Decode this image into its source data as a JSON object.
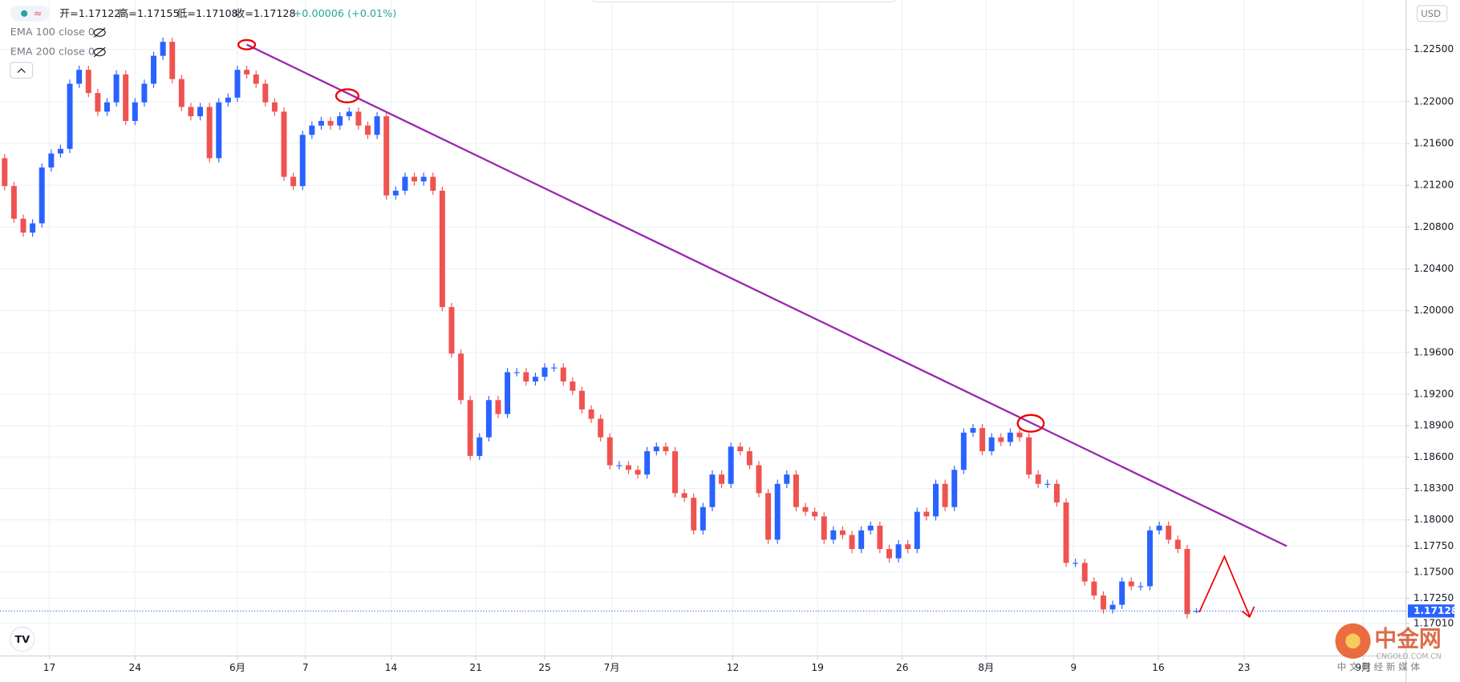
{
  "chart_data": {
    "type": "candlestick",
    "ohlc_text": [
      "开=1.17122",
      "高=1.17155",
      "低=1.17108",
      "收=1.17128",
      "+0.00006 (+0.01%)"
    ],
    "indicators": [
      "EMA 100 close 0",
      "EMA 200 close 0"
    ],
    "currency": "USD",
    "watermark": [
      "中金网",
      "CNGOLD.COM.CN",
      "中 文 财 经 新 媒 体"
    ],
    "up_color": "#2962ff",
    "down_color": "#ef5350",
    "grid": true,
    "xlim": [
      -0.5,
      150.5
    ],
    "ylim": [
      1.16698,
      1.22972
    ],
    "xticks": [
      {
        "value": 4.8,
        "label": "17"
      },
      {
        "value": 14,
        "label": "24"
      },
      {
        "value": 25,
        "label": "6月"
      },
      {
        "value": 32.3,
        "label": "7"
      },
      {
        "value": 41.5,
        "label": "14"
      },
      {
        "value": 50.6,
        "label": "21"
      },
      {
        "value": 58,
        "label": "25"
      },
      {
        "value": 65.2,
        "label": "7月"
      },
      {
        "value": 78.2,
        "label": "12"
      },
      {
        "value": 87.3,
        "label": "19"
      },
      {
        "value": 96.4,
        "label": "26"
      },
      {
        "value": 105.4,
        "label": "8月"
      },
      {
        "value": 114.8,
        "label": "9"
      },
      {
        "value": 123.9,
        "label": "16"
      },
      {
        "value": 133.1,
        "label": "23"
      },
      {
        "value": 145.9,
        "label": "9月"
      }
    ],
    "yticks": [
      {
        "value": 1.225,
        "label": "1.22500"
      },
      {
        "value": 1.22,
        "label": "1.22000"
      },
      {
        "value": 1.216,
        "label": "1.21600"
      },
      {
        "value": 1.212,
        "label": "1.21200"
      },
      {
        "value": 1.208,
        "label": "1.20800"
      },
      {
        "value": 1.204,
        "label": "1.20400"
      },
      {
        "value": 1.2,
        "label": "1.20000"
      },
      {
        "value": 1.196,
        "label": "1.19600"
      },
      {
        "value": 1.192,
        "label": "1.19200"
      },
      {
        "value": 1.189,
        "label": "1.18900"
      },
      {
        "value": 1.186,
        "label": "1.18600"
      },
      {
        "value": 1.183,
        "label": "1.18300"
      },
      {
        "value": 1.18,
        "label": "1.18000"
      },
      {
        "value": 1.1775,
        "label": "1.17750"
      },
      {
        "value": 1.175,
        "label": "1.17500"
      },
      {
        "value": 1.1725,
        "label": "1.17250"
      },
      {
        "value": 1.1701,
        "label": "1.17010"
      }
    ],
    "last_price": {
      "value": 1.17128,
      "label": "1.17128"
    },
    "x": [
      0,
      1,
      2,
      3,
      4,
      5,
      6,
      7,
      8,
      9,
      10,
      11,
      12,
      13,
      14,
      15,
      16,
      17,
      18,
      19,
      20,
      21,
      22,
      23,
      24,
      25,
      26,
      27,
      28,
      29,
      30,
      31,
      32,
      33,
      34,
      35,
      36,
      37,
      38,
      39,
      40,
      41,
      42,
      43,
      44,
      45,
      46,
      47,
      48,
      49,
      50,
      51,
      52,
      53,
      54,
      55,
      56,
      57,
      58,
      59,
      60,
      61,
      62,
      63,
      64,
      65,
      66,
      67,
      68,
      69,
      70,
      71,
      72,
      73,
      74,
      75,
      76,
      77,
      78,
      79,
      80,
      81,
      82,
      83,
      84,
      85,
      86,
      87,
      88,
      89,
      90,
      91,
      92,
      93,
      94,
      95,
      96,
      97,
      98,
      99,
      100,
      101,
      102,
      103,
      104,
      105,
      106,
      107,
      108,
      109,
      110,
      111,
      112,
      113,
      114,
      115,
      116,
      117,
      118,
      119,
      120,
      121,
      122,
      123,
      124,
      125,
      126,
      127,
      128
    ],
    "open": [
      1.21459,
      1.21192,
      1.2088,
      1.20747,
      1.20836,
      1.2137,
      1.21504,
      1.21548,
      1.22171,
      1.22304,
      1.22082,
      1.21904,
      1.21993,
      1.2226,
      1.21815,
      1.21993,
      1.22171,
      1.22438,
      1.22572,
      1.22216,
      1.21949,
      1.2186,
      1.21949,
      1.21459,
      1.21993,
      1.22038,
      1.22304,
      1.2226,
      1.22171,
      1.21993,
      1.21904,
      1.21281,
      1.21192,
      1.21682,
      1.21771,
      1.21815,
      1.21771,
      1.2186,
      1.21904,
      1.21771,
      1.21682,
      1.2186,
      1.21103,
      1.21148,
      1.21281,
      1.21237,
      1.21281,
      1.21148,
      1.20035,
      1.1959,
      1.19145,
      1.18611,
      1.18789,
      1.19145,
      1.19012,
      1.19412,
      1.19412,
      1.19323,
      1.19368,
      1.19457,
      1.19457,
      1.19323,
      1.19234,
      1.19056,
      1.18967,
      1.18789,
      1.18522,
      1.18522,
      1.18478,
      1.18433,
      1.18656,
      1.187,
      1.18656,
      1.18255,
      1.18211,
      1.17899,
      1.18122,
      1.18433,
      1.18344,
      1.187,
      1.18656,
      1.18522,
      1.18255,
      1.1781,
      1.18344,
      1.18433,
      1.18122,
      1.18077,
      1.18033,
      1.1781,
      1.17899,
      1.17855,
      1.17721,
      1.17899,
      1.17944,
      1.17721,
      1.17632,
      1.17766,
      1.17721,
      1.18077,
      1.18033,
      1.18344,
      1.18122,
      1.18478,
      1.18834,
      1.18878,
      1.18656,
      1.18789,
      1.18745,
      1.18834,
      1.18789,
      1.18433,
      1.18344,
      1.18344,
      1.18166,
      1.17588,
      1.17588,
      1.1741,
      1.17276,
      1.17143,
      1.17187,
      1.1741,
      1.17365,
      1.17365,
      1.17899,
      1.17944,
      1.1781,
      1.17721,
      1.17122
    ],
    "high": [
      1.21499,
      1.21232,
      1.2092,
      1.20876,
      1.2141,
      1.21544,
      1.21588,
      1.22211,
      1.22344,
      1.22344,
      1.22122,
      1.22033,
      1.223,
      1.223,
      1.22033,
      1.22211,
      1.22478,
      1.22612,
      1.22612,
      1.22256,
      1.21989,
      1.21989,
      1.21989,
      1.22033,
      1.22078,
      1.22344,
      1.22344,
      1.223,
      1.22211,
      1.22033,
      1.21944,
      1.21321,
      1.21722,
      1.21811,
      1.21855,
      1.21855,
      1.219,
      1.21944,
      1.21944,
      1.21811,
      1.219,
      1.219,
      1.21188,
      1.21321,
      1.21321,
      1.21321,
      1.21321,
      1.21188,
      1.20075,
      1.1963,
      1.19185,
      1.18829,
      1.19185,
      1.19185,
      1.19452,
      1.19452,
      1.19452,
      1.19408,
      1.19497,
      1.19497,
      1.19497,
      1.19363,
      1.19274,
      1.19096,
      1.19007,
      1.18829,
      1.18562,
      1.18562,
      1.18518,
      1.18696,
      1.1874,
      1.1874,
      1.18696,
      1.18295,
      1.18251,
      1.18162,
      1.18473,
      1.18473,
      1.1874,
      1.1874,
      1.18696,
      1.18562,
      1.18295,
      1.18384,
      1.18473,
      1.18473,
      1.18162,
      1.18117,
      1.18073,
      1.17939,
      1.17939,
      1.17895,
      1.17939,
      1.17984,
      1.17984,
      1.17761,
      1.17806,
      1.17806,
      1.18117,
      1.18117,
      1.18384,
      1.18384,
      1.18518,
      1.18874,
      1.18918,
      1.18918,
      1.18829,
      1.18829,
      1.18874,
      1.18874,
      1.18829,
      1.18473,
      1.18384,
      1.18384,
      1.18206,
      1.17628,
      1.17628,
      1.1745,
      1.17316,
      1.17227,
      1.1745,
      1.1745,
      1.17405,
      1.17939,
      1.17984,
      1.17984,
      1.1785,
      1.17761,
      1.17155
    ],
    "low": [
      1.21152,
      1.2084,
      1.20707,
      1.20707,
      1.20796,
      1.2133,
      1.21464,
      1.21508,
      1.22131,
      1.22042,
      1.21864,
      1.21864,
      1.21953,
      1.21775,
      1.21775,
      1.21953,
      1.22131,
      1.22398,
      1.22176,
      1.21909,
      1.2182,
      1.2182,
      1.21419,
      1.21419,
      1.21953,
      1.21998,
      1.2222,
      1.22131,
      1.21953,
      1.21864,
      1.21241,
      1.21152,
      1.21152,
      1.21642,
      1.21731,
      1.21731,
      1.21731,
      1.2182,
      1.21731,
      1.21642,
      1.21642,
      1.21063,
      1.21063,
      1.21108,
      1.21197,
      1.21197,
      1.21108,
      1.19995,
      1.1955,
      1.19105,
      1.18571,
      1.18571,
      1.18749,
      1.18972,
      1.18972,
      1.19372,
      1.19283,
      1.19283,
      1.19328,
      1.19417,
      1.19283,
      1.19194,
      1.19016,
      1.18927,
      1.18749,
      1.18482,
      1.18482,
      1.18438,
      1.18393,
      1.18393,
      1.18616,
      1.18616,
      1.18215,
      1.18171,
      1.17859,
      1.17859,
      1.18082,
      1.18304,
      1.18304,
      1.18616,
      1.18482,
      1.18215,
      1.1777,
      1.1777,
      1.18304,
      1.18082,
      1.18037,
      1.17993,
      1.1777,
      1.1777,
      1.17815,
      1.17681,
      1.17681,
      1.17859,
      1.17681,
      1.17592,
      1.17592,
      1.17681,
      1.17681,
      1.17993,
      1.17993,
      1.18082,
      1.18082,
      1.18438,
      1.18794,
      1.18616,
      1.18616,
      1.18705,
      1.18705,
      1.18749,
      1.18393,
      1.18304,
      1.18304,
      1.18126,
      1.17548,
      1.17548,
      1.1737,
      1.17236,
      1.17103,
      1.17103,
      1.17147,
      1.17325,
      1.17325,
      1.17325,
      1.17859,
      1.1777,
      1.17681,
      1.17058,
      1.17108
    ],
    "close": [
      1.21192,
      1.2088,
      1.20747,
      1.20836,
      1.2137,
      1.21504,
      1.21548,
      1.22171,
      1.22304,
      1.22082,
      1.21904,
      1.21993,
      1.2226,
      1.21815,
      1.21993,
      1.22171,
      1.22438,
      1.22572,
      1.22216,
      1.21949,
      1.2186,
      1.21949,
      1.21459,
      1.21993,
      1.22038,
      1.22304,
      1.2226,
      1.22171,
      1.21993,
      1.21904,
      1.21281,
      1.21192,
      1.21682,
      1.21771,
      1.21815,
      1.21771,
      1.2186,
      1.21904,
      1.21771,
      1.21682,
      1.2186,
      1.21103,
      1.21148,
      1.21281,
      1.21237,
      1.21281,
      1.21148,
      1.20035,
      1.1959,
      1.19145,
      1.18611,
      1.18789,
      1.19145,
      1.19012,
      1.19412,
      1.19412,
      1.19323,
      1.19368,
      1.19457,
      1.19457,
      1.19323,
      1.19234,
      1.19056,
      1.18967,
      1.18789,
      1.18522,
      1.18522,
      1.18478,
      1.18433,
      1.18656,
      1.187,
      1.18656,
      1.18255,
      1.18211,
      1.17899,
      1.18122,
      1.18433,
      1.18344,
      1.187,
      1.18656,
      1.18522,
      1.18255,
      1.1781,
      1.18344,
      1.18433,
      1.18122,
      1.18077,
      1.18033,
      1.1781,
      1.17899,
      1.17855,
      1.17721,
      1.17899,
      1.17944,
      1.17721,
      1.17632,
      1.17766,
      1.17721,
      1.18077,
      1.18033,
      1.18344,
      1.18122,
      1.18478,
      1.18834,
      1.18878,
      1.18656,
      1.18789,
      1.18745,
      1.18834,
      1.18789,
      1.18433,
      1.18344,
      1.18344,
      1.18166,
      1.17588,
      1.17588,
      1.1741,
      1.17276,
      1.17143,
      1.17187,
      1.1741,
      1.17365,
      1.17365,
      1.17899,
      1.17944,
      1.1781,
      1.17721,
      1.17098,
      1.17128
    ]
  }
}
